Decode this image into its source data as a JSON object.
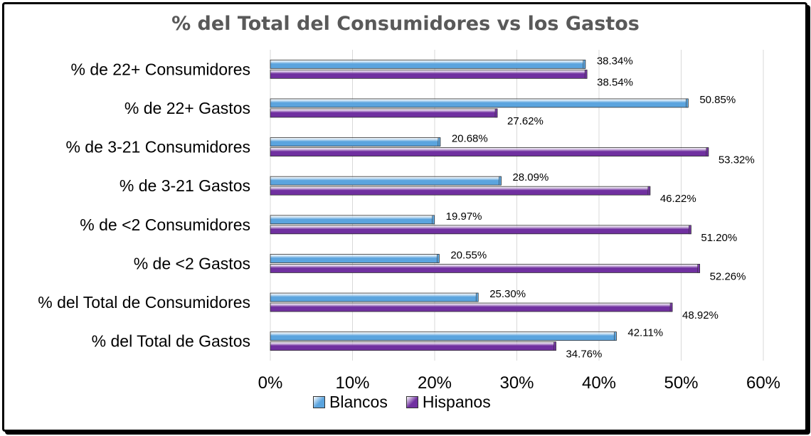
{
  "chart_data": {
    "type": "bar",
    "orientation": "horizontal",
    "title": "% del Total del Consumidores vs los Gastos",
    "categories": [
      "% de 22+ Consumidores",
      "% de 22+ Gastos",
      "% de 3-21 Consumidores",
      "% de 3-21 Gastos",
      "% de <2 Consumidores ",
      "% de <2 Gastos",
      "% del Total de Consumidores",
      "% del Total de Gastos"
    ],
    "series": [
      {
        "name": "Blancos",
        "color": "#5BA4DE",
        "values": [
          38.34,
          50.85,
          20.68,
          28.09,
          19.97,
          20.55,
          25.3,
          42.11
        ],
        "labels": [
          "38.34%",
          "50.85%",
          "20.68%",
          "28.09%",
          "19.97%",
          "20.55%",
          "25.30%",
          "42.11%"
        ]
      },
      {
        "name": "Hispanos",
        "color": "#7030A0",
        "values": [
          38.54,
          27.62,
          53.32,
          46.22,
          51.2,
          52.26,
          48.92,
          34.76
        ],
        "labels": [
          "38.54%",
          "27.62%",
          "53.32%",
          "46.22%",
          "51.20%",
          "52.26%",
          "48.92%",
          "34.76%"
        ]
      }
    ],
    "xlim": [
      0,
      60
    ],
    "xticks": [
      "0%",
      "10%",
      "20%",
      "30%",
      "40%",
      "50%",
      "60%"
    ],
    "grid": true,
    "legend_position": "bottom"
  }
}
